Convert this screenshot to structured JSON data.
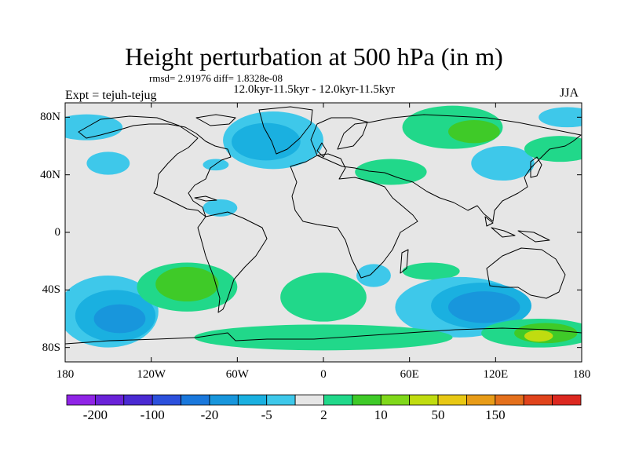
{
  "title": "Height perturbation at 500 hPa (in m)",
  "stats_text": "rmsd= 2.91976 diff= 1.8328e-08",
  "period_text": "12.0kyr-11.5kyr - 12.0kyr-11.5kyr",
  "experiment_text": "Expt = tejuh-tejug",
  "season_text": "JJA",
  "map": {
    "projection": "cylindrical-equidistant",
    "lon_range": [
      -180,
      180
    ],
    "lat_range": [
      -90,
      90
    ],
    "background_color": "#e6e6e6",
    "lat_ticks": [
      {
        "lat": 80,
        "label": "80N"
      },
      {
        "lat": 40,
        "label": "40N"
      },
      {
        "lat": 0,
        "label": "0"
      },
      {
        "lat": -40,
        "label": "40S"
      },
      {
        "lat": -80,
        "label": "80S"
      }
    ],
    "lon_ticks": [
      {
        "lon": -180,
        "label": "180"
      },
      {
        "lon": -120,
        "label": "120W"
      },
      {
        "lon": -60,
        "label": "60W"
      },
      {
        "lon": 0,
        "label": "0"
      },
      {
        "lon": 60,
        "label": "60E"
      },
      {
        "lon": 120,
        "label": "120E"
      },
      {
        "lon": 180,
        "label": "180"
      }
    ]
  },
  "colorbar": {
    "colors": [
      "#8f24e6",
      "#6a22d8",
      "#4a2ad2",
      "#2c50dc",
      "#1a78dc",
      "#1896dc",
      "#1ab0e0",
      "#3ec8ea",
      "#e6e6e6",
      "#21d88a",
      "#3fca28",
      "#80d81a",
      "#c0dc10",
      "#e8c814",
      "#e89c18",
      "#e4701c",
      "#e0441c",
      "#dc2820"
    ],
    "labels": [
      "-200",
      "-100",
      "-20",
      "-5",
      "2",
      "10",
      "50",
      "150"
    ]
  },
  "field_anomalies": [
    {
      "lon": -165,
      "lat": 73,
      "rx": 25,
      "ry": 9,
      "level": "#3ec8ea"
    },
    {
      "lon": -150,
      "lat": 48,
      "rx": 15,
      "ry": 8,
      "level": "#3ec8ea"
    },
    {
      "lon": -75,
      "lat": 47,
      "rx": 9,
      "ry": 4,
      "level": "#3ec8ea"
    },
    {
      "lon": -72,
      "lat": 17,
      "rx": 12,
      "ry": 6,
      "level": "#3ec8ea"
    },
    {
      "lon": -35,
      "lat": 64,
      "rx": 35,
      "ry": 20,
      "level": "#3ec8ea"
    },
    {
      "lon": -40,
      "lat": 63,
      "rx": 24,
      "ry": 13,
      "level": "#1ab0e0"
    },
    {
      "lon": 47,
      "lat": 42,
      "rx": 25,
      "ry": 9,
      "level": "#21d88a"
    },
    {
      "lon": 90,
      "lat": 73,
      "rx": 35,
      "ry": 15,
      "level": "#21d88a"
    },
    {
      "lon": 105,
      "lat": 70,
      "rx": 18,
      "ry": 8,
      "level": "#3fca28"
    },
    {
      "lon": 125,
      "lat": 48,
      "rx": 22,
      "ry": 12,
      "level": "#3ec8ea"
    },
    {
      "lon": 170,
      "lat": 80,
      "rx": 20,
      "ry": 7,
      "level": "#3ec8ea"
    },
    {
      "lon": 165,
      "lat": 58,
      "rx": 25,
      "ry": 9,
      "level": "#21d88a"
    },
    {
      "lon": -150,
      "lat": -55,
      "rx": 35,
      "ry": 25,
      "level": "#3ec8ea"
    },
    {
      "lon": -145,
      "lat": -58,
      "rx": 28,
      "ry": 18,
      "level": "#1ab0e0"
    },
    {
      "lon": -142,
      "lat": -60,
      "rx": 18,
      "ry": 10,
      "level": "#1896dc"
    },
    {
      "lon": -95,
      "lat": -38,
      "rx": 35,
      "ry": 17,
      "level": "#21d88a"
    },
    {
      "lon": -95,
      "lat": -36,
      "rx": 22,
      "ry": 12,
      "level": "#3fca28"
    },
    {
      "lon": 0,
      "lat": -45,
      "rx": 30,
      "ry": 17,
      "level": "#21d88a"
    },
    {
      "lon": 35,
      "lat": -30,
      "rx": 12,
      "ry": 8,
      "level": "#3ec8ea"
    },
    {
      "lon": 75,
      "lat": -27,
      "rx": 20,
      "ry": 6,
      "level": "#21d88a"
    },
    {
      "lon": 95,
      "lat": -52,
      "rx": 45,
      "ry": 21,
      "level": "#3ec8ea"
    },
    {
      "lon": 110,
      "lat": -51,
      "rx": 35,
      "ry": 16,
      "level": "#1ab0e0"
    },
    {
      "lon": 112,
      "lat": -52,
      "rx": 25,
      "ry": 11,
      "level": "#1896dc"
    },
    {
      "lon": 150,
      "lat": -70,
      "rx": 40,
      "ry": 10,
      "level": "#21d88a"
    },
    {
      "lon": 155,
      "lat": -70,
      "rx": 22,
      "ry": 7,
      "level": "#3fca28"
    },
    {
      "lon": 150,
      "lat": -72,
      "rx": 10,
      "ry": 4,
      "level": "#c0dc10"
    },
    {
      "lon": 0,
      "lat": -73,
      "rx": 90,
      "ry": 9,
      "level": "#21d88a"
    }
  ]
}
